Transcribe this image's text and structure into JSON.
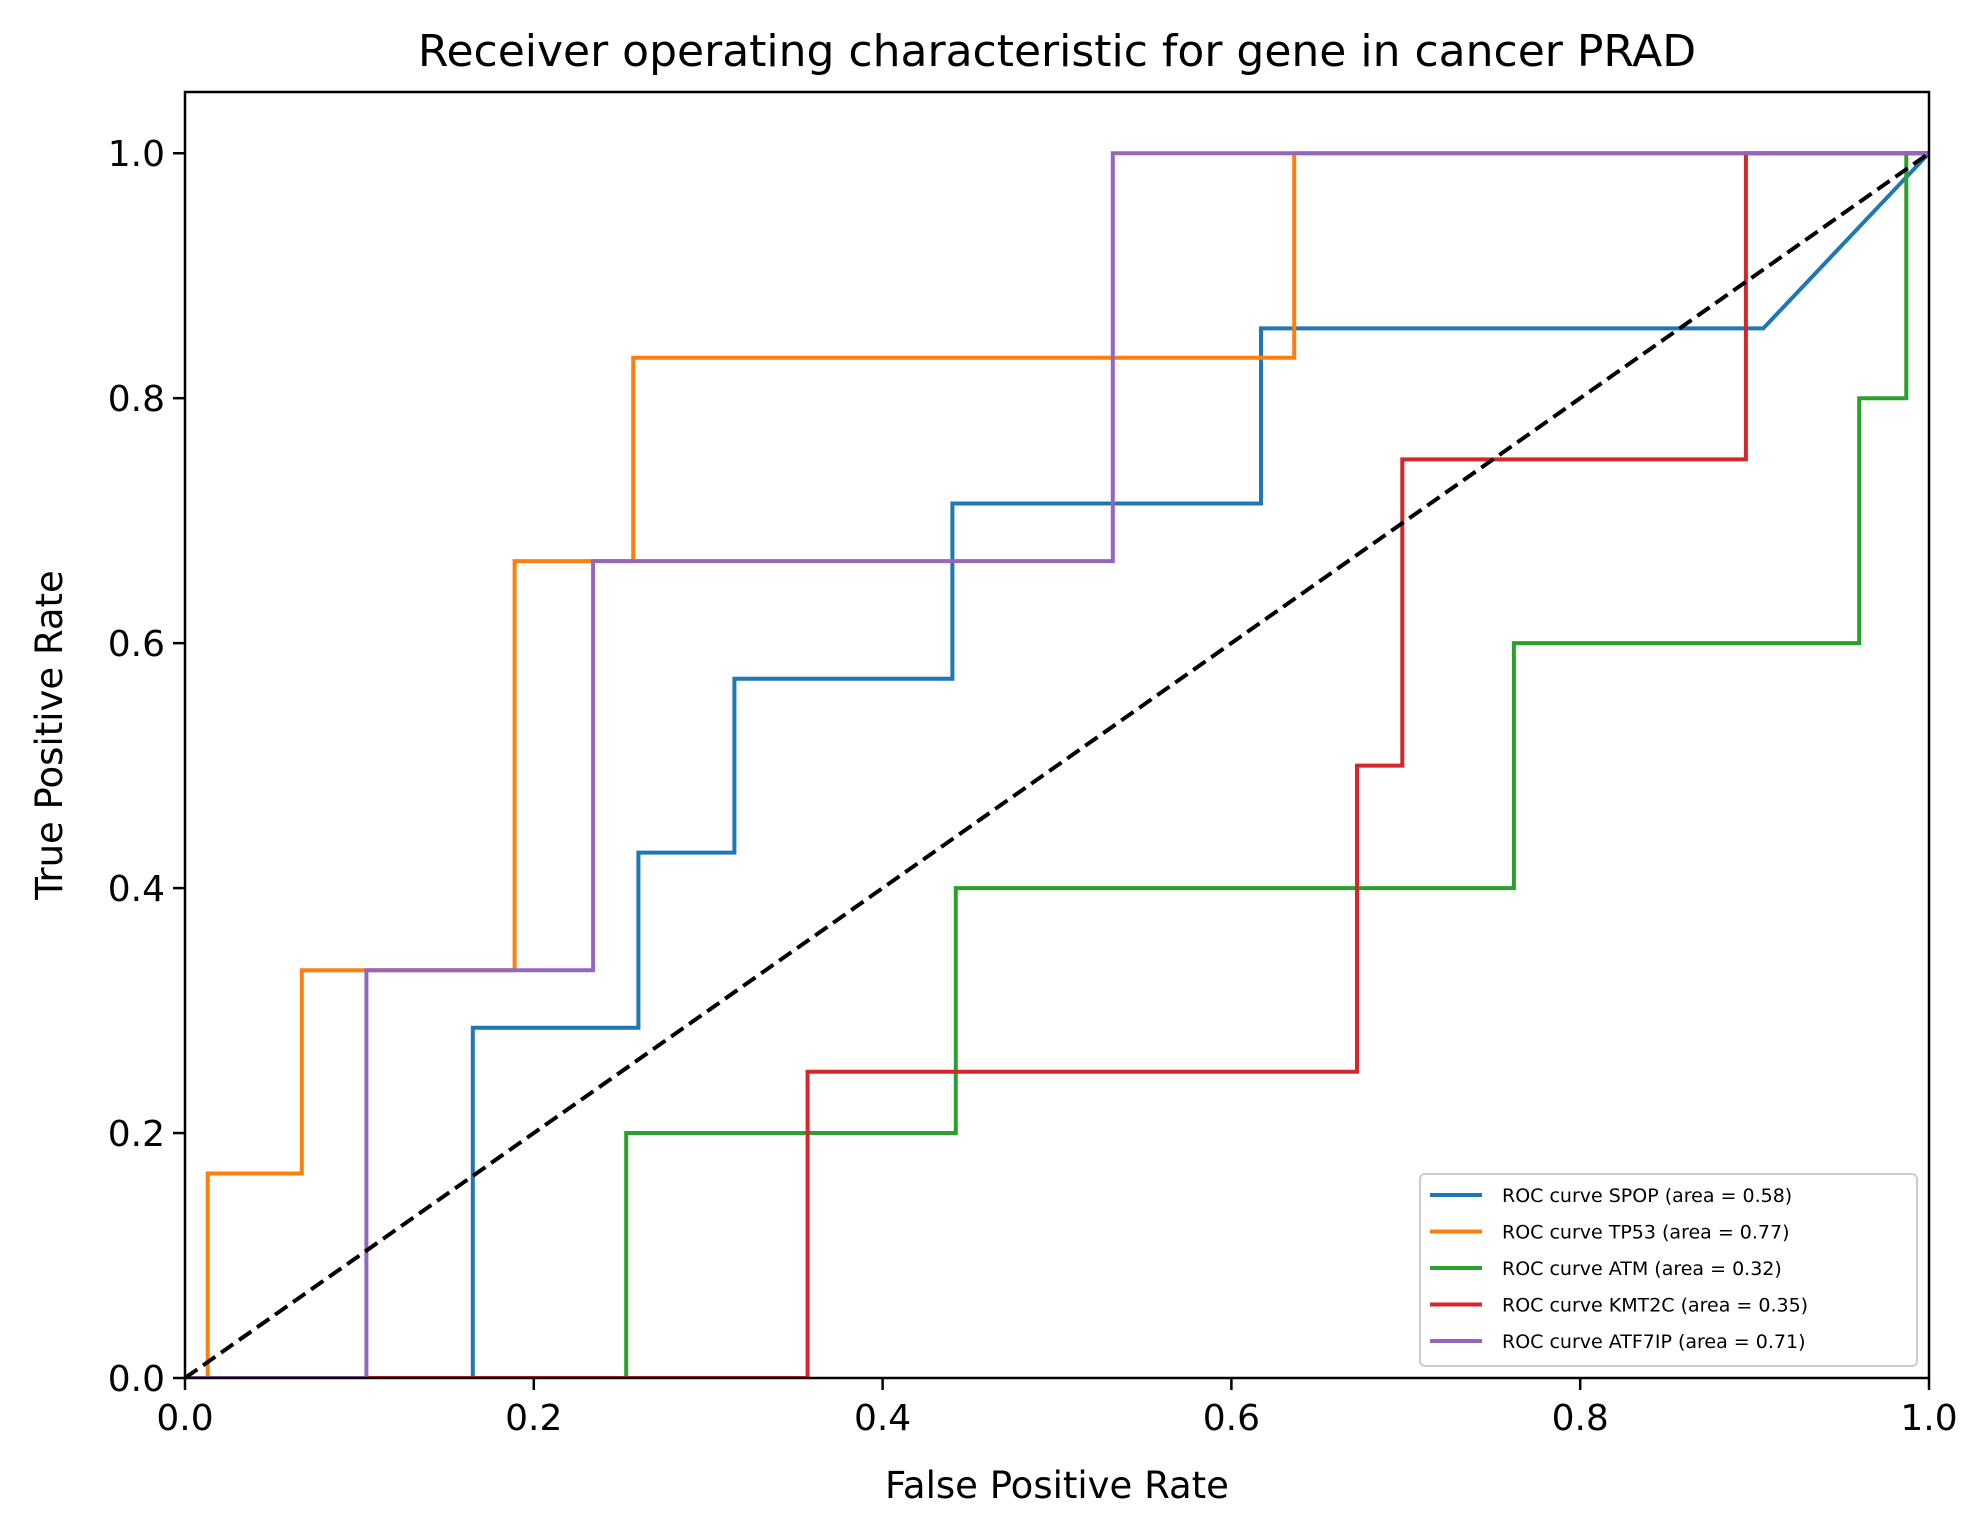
{
  "chart_data": {
    "type": "line",
    "title": "Receiver operating characteristic for gene in cancer PRAD",
    "xlabel": "False Positive Rate",
    "ylabel": "True Positive Rate",
    "xlim": [
      0.0,
      1.0
    ],
    "ylim": [
      0.0,
      1.05
    ],
    "xticks": [
      "0.0",
      "0.2",
      "0.4",
      "0.6",
      "0.8",
      "1.0"
    ],
    "yticks": [
      "0.0",
      "0.2",
      "0.4",
      "0.6",
      "0.8",
      "1.0"
    ],
    "grid": false,
    "legend_position": "lower right",
    "series": [
      {
        "name": "ROC curve SPOP (area = 0.58)",
        "color": "#1f77b4",
        "x": [
          0.0,
          0.165,
          0.165,
          0.26,
          0.26,
          0.315,
          0.315,
          0.44,
          0.44,
          0.617,
          0.617,
          0.905,
          1.0
        ],
        "y": [
          0.0,
          0.0,
          0.286,
          0.286,
          0.429,
          0.429,
          0.571,
          0.571,
          0.714,
          0.714,
          0.857,
          0.857,
          1.0
        ]
      },
      {
        "name": "ROC curve TP53 (area = 0.77)",
        "color": "#ff7f0e",
        "x": [
          0.0,
          0.013,
          0.013,
          0.067,
          0.067,
          0.189,
          0.189,
          0.257,
          0.257,
          0.636,
          0.636,
          1.0
        ],
        "y": [
          0.0,
          0.0,
          0.167,
          0.167,
          0.333,
          0.333,
          0.667,
          0.667,
          0.833,
          0.833,
          1.0,
          1.0
        ]
      },
      {
        "name": "ROC curve ATM (area = 0.32)",
        "color": "#2ca02c",
        "x": [
          0.0,
          0.253,
          0.253,
          0.442,
          0.442,
          0.762,
          0.762,
          0.96,
          0.96,
          0.987,
          0.987,
          1.0
        ],
        "y": [
          0.0,
          0.0,
          0.2,
          0.2,
          0.4,
          0.4,
          0.6,
          0.6,
          0.8,
          0.8,
          1.0,
          1.0
        ]
      },
      {
        "name": "ROC curve KMT2C (area = 0.35)",
        "color": "#d62728",
        "x": [
          0.0,
          0.357,
          0.357,
          0.672,
          0.672,
          0.698,
          0.698,
          0.895,
          0.895,
          1.0
        ],
        "y": [
          0.0,
          0.0,
          0.25,
          0.25,
          0.5,
          0.5,
          0.75,
          0.75,
          1.0,
          1.0
        ]
      },
      {
        "name": "ROC curve ATF7IP (area = 0.71)",
        "color": "#9467bd",
        "x": [
          0.0,
          0.104,
          0.104,
          0.234,
          0.234,
          0.532,
          0.532,
          1.0
        ],
        "y": [
          0.0,
          0.0,
          0.333,
          0.333,
          0.667,
          0.667,
          1.0,
          1.0
        ]
      }
    ],
    "reference_line": {
      "color": "#000000",
      "style": "dashed",
      "x": [
        0.0,
        1.0
      ],
      "y": [
        0.0,
        1.0
      ]
    }
  }
}
